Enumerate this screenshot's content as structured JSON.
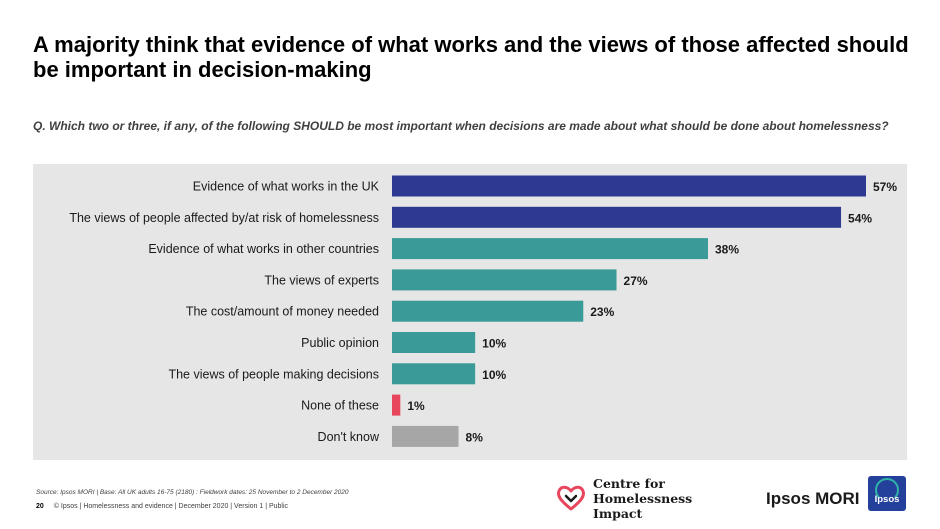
{
  "title": "A majority think that evidence of what works and the views of those affected should be important in decision-making",
  "question": "Q. Which two or three, if any, of the following SHOULD be most important when decisions are made about what should be done about homelessness?",
  "chart_data": {
    "type": "bar",
    "orientation": "horizontal",
    "categories": [
      "Evidence of what works in the UK",
      "The views of people affected by/at risk of homelessness",
      "Evidence of what works in other countries",
      "The views of experts",
      "The cost/amount of money needed",
      "Public opinion",
      "The views of people making decisions",
      "None of these",
      "Don't know"
    ],
    "values": [
      57,
      54,
      38,
      27,
      23,
      10,
      10,
      1,
      8
    ],
    "value_labels": [
      "57%",
      "54%",
      "38%",
      "27%",
      "23%",
      "10%",
      "10%",
      "1%",
      "8%"
    ],
    "colors": [
      "#2e3a91",
      "#2e3a91",
      "#3a9a98",
      "#3a9a98",
      "#3a9a98",
      "#3a9a98",
      "#3a9a98",
      "#e8465c",
      "#a6a6a6"
    ],
    "xlim": [
      0,
      57
    ],
    "grid": false,
    "background": "#e6e6e6"
  },
  "footer": {
    "source": "Source: Ipsos MORI | Base: All UK adults 16-75 (2180) : Fieldwork dates: 25 November to 2 December 2020",
    "page_number": "20",
    "page_info": "© Ipsos | Homelessness and evidence | December 2020 | Version 1 | Public"
  },
  "logos": {
    "chi_line1": "Centre for",
    "chi_line2": "Homelessness Impact",
    "ipsos_text": "Ipsos MORI",
    "ipsos_badge": "Ipsos",
    "heart_color": "#e8465c",
    "ipsos_blue": "#23409a",
    "ipsos_teal": "#2fb3a6"
  }
}
